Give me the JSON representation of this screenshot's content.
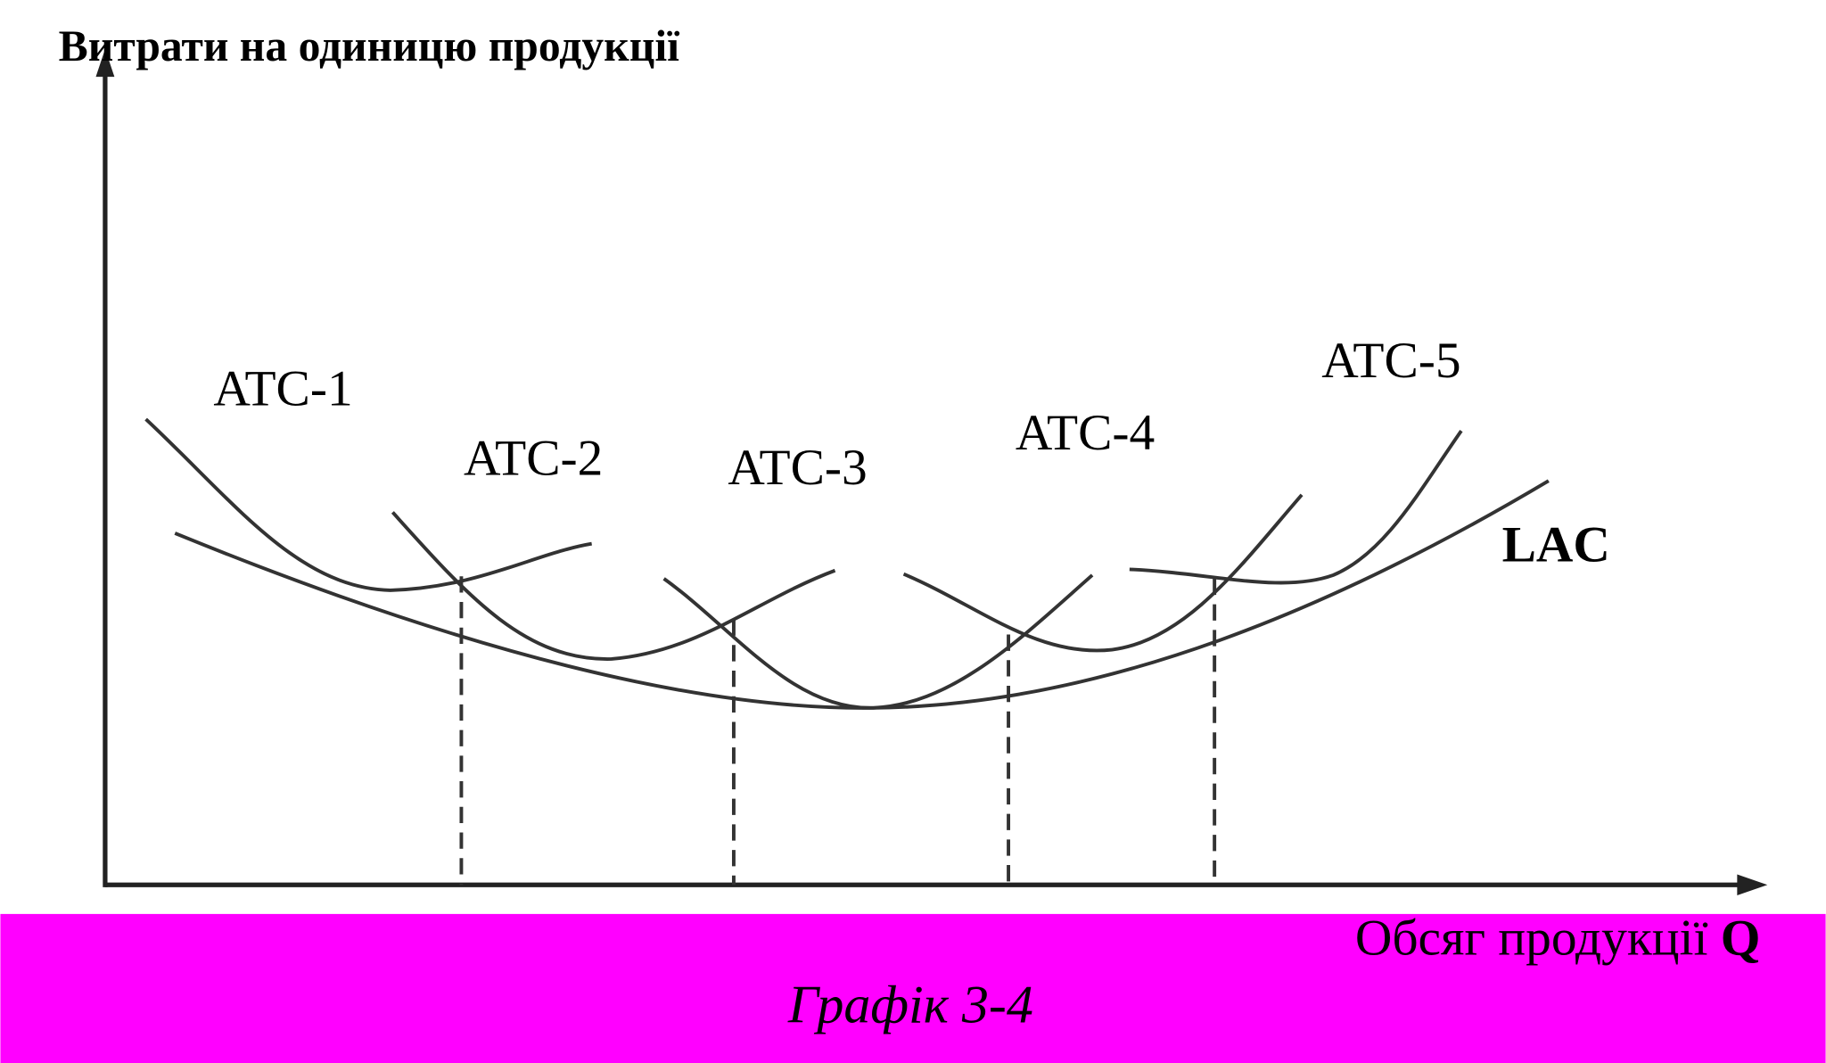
{
  "y_axis_label": "Витрати на одиницю продукції",
  "curve_labels": [
    "ATC-1",
    "ATC-2",
    "ATC-3",
    "ATC-4",
    "ATC-5"
  ],
  "lac_label": "LAC",
  "x_axis_label": {
    "text": "Обсяг продукції",
    "symbol": "Q"
  },
  "caption": "Графік 3-4"
}
